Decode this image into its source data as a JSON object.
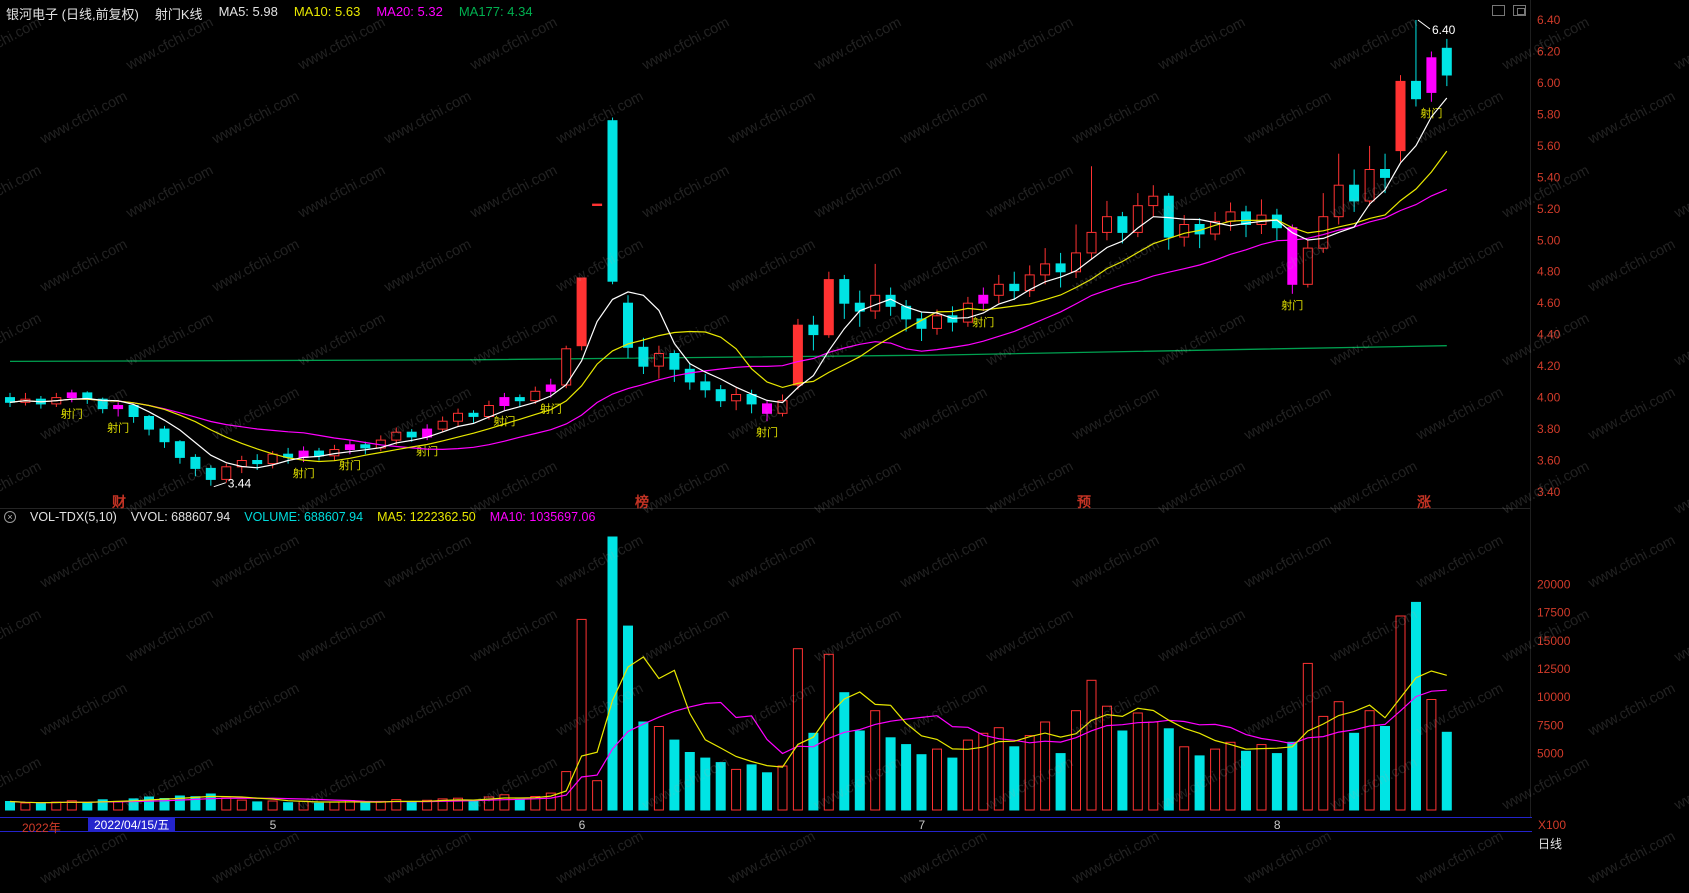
{
  "header": {
    "title": "银河电子 (日线,前复权)",
    "indicator": "射门K线",
    "ma5": "MA5: 5.98",
    "ma10": "MA10: 5.63",
    "ma20": "MA20: 5.32",
    "ma177": "MA177: 4.34"
  },
  "vol_header": {
    "name": "VOL-TDX(5,10)",
    "vvol": "VVOL: 688607.94",
    "volume": "VOLUME: 688607.94",
    "ma5": "MA5: 1222362.50",
    "ma10": "MA10: 1035697.06"
  },
  "hot_words": [
    "财",
    "榜",
    "预",
    "涨"
  ],
  "watermark": "www.cfchi.com",
  "timeline": {
    "year": "2022年",
    "selected_date": "2022/04/15/五",
    "months": [
      {
        "label": "5",
        "index": 17
      },
      {
        "label": "6",
        "index": 37
      },
      {
        "label": "7",
        "index": 59
      },
      {
        "label": "8",
        "index": 82
      }
    ]
  },
  "bottom_right": {
    "unit": "X100",
    "period": "日线"
  },
  "colors": {
    "up": "#ff3232",
    "down": "#00e4e4",
    "signal": "#ff00ff",
    "ma5_line": "#ffffff",
    "ma10_line": "#e8e800",
    "ma20_line": "#ff00ff",
    "ma177_line": "#00a050",
    "vol_ma5_line": "#e8e800",
    "vol_ma10_line": "#ff00ff",
    "axis_text": "#d23b2a",
    "month_text": "#c8c8c8",
    "signal_label": "#e0e000",
    "annotation": "#ffffff",
    "timeline_blue": "#2323cb",
    "highlight_bg": "#2424cc",
    "hot_word": "#c23324",
    "background": "#000000"
  },
  "chart_data": {
    "type": "candlestick+volume",
    "title": "银河电子 日线 前复权 射门K线",
    "price_axis": {
      "min": 3.4,
      "max": 6.4,
      "step": 0.2
    },
    "volume_axis": {
      "labels": [
        20000,
        17500,
        15000,
        12500,
        10000,
        7500,
        5000
      ],
      "max": 25000,
      "unit": "X100"
    },
    "signal_label": "射门",
    "low_marker": {
      "index": 13,
      "price": 3.44
    },
    "high_marker": {
      "index": 91,
      "price": 6.4
    },
    "ma177_points": [
      [
        0,
        4.23
      ],
      [
        30,
        4.24
      ],
      [
        60,
        4.27
      ],
      [
        93,
        4.33
      ]
    ],
    "candles_format": "[open,high,low,close,volume_x100,flag] flag:0=normal,1=shoot_signal_magenta,2=solid_up",
    "candles": [
      [
        4.0,
        4.03,
        3.94,
        3.97,
        750,
        0
      ],
      [
        3.97,
        4.03,
        3.95,
        3.99,
        620,
        0
      ],
      [
        3.99,
        4.01,
        3.93,
        3.96,
        580,
        0
      ],
      [
        3.96,
        4.03,
        3.94,
        4.0,
        700,
        0
      ],
      [
        4.0,
        4.05,
        3.97,
        4.03,
        820,
        1
      ],
      [
        4.03,
        4.04,
        3.96,
        3.99,
        640,
        0
      ],
      [
        3.99,
        4.0,
        3.9,
        3.93,
        900,
        0
      ],
      [
        3.93,
        3.97,
        3.88,
        3.95,
        760,
        1
      ],
      [
        3.95,
        3.96,
        3.84,
        3.88,
        980,
        0
      ],
      [
        3.88,
        3.89,
        3.76,
        3.8,
        1150,
        0
      ],
      [
        3.8,
        3.82,
        3.68,
        3.72,
        1020,
        0
      ],
      [
        3.72,
        3.73,
        3.58,
        3.62,
        1240,
        0
      ],
      [
        3.62,
        3.64,
        3.5,
        3.55,
        1180,
        0
      ],
      [
        3.55,
        3.57,
        3.44,
        3.48,
        1420,
        0
      ],
      [
        3.48,
        3.58,
        3.46,
        3.56,
        1060,
        0
      ],
      [
        3.56,
        3.63,
        3.52,
        3.6,
        880,
        0
      ],
      [
        3.6,
        3.64,
        3.54,
        3.58,
        720,
        0
      ],
      [
        3.58,
        3.66,
        3.55,
        3.64,
        800,
        0
      ],
      [
        3.64,
        3.68,
        3.58,
        3.62,
        650,
        0
      ],
      [
        3.62,
        3.69,
        3.59,
        3.66,
        780,
        1
      ],
      [
        3.66,
        3.68,
        3.6,
        3.63,
        600,
        0
      ],
      [
        3.63,
        3.7,
        3.6,
        3.67,
        700,
        0
      ],
      [
        3.67,
        3.73,
        3.64,
        3.7,
        840,
        1
      ],
      [
        3.7,
        3.72,
        3.64,
        3.68,
        620,
        0
      ],
      [
        3.68,
        3.76,
        3.66,
        3.73,
        760,
        0
      ],
      [
        3.73,
        3.81,
        3.7,
        3.78,
        920,
        0
      ],
      [
        3.78,
        3.8,
        3.72,
        3.75,
        680,
        0
      ],
      [
        3.75,
        3.83,
        3.73,
        3.8,
        860,
        1
      ],
      [
        3.8,
        3.88,
        3.78,
        3.85,
        980,
        0
      ],
      [
        3.85,
        3.93,
        3.82,
        3.9,
        1050,
        0
      ],
      [
        3.9,
        3.92,
        3.84,
        3.88,
        800,
        0
      ],
      [
        3.88,
        3.98,
        3.86,
        3.95,
        1150,
        0
      ],
      [
        3.95,
        4.03,
        3.92,
        4.0,
        1350,
        1
      ],
      [
        4.0,
        4.02,
        3.94,
        3.98,
        950,
        0
      ],
      [
        3.98,
        4.07,
        3.96,
        4.04,
        1200,
        0
      ],
      [
        4.04,
        4.12,
        4.0,
        4.08,
        1500,
        1
      ],
      [
        4.08,
        4.33,
        4.06,
        4.31,
        3400,
        0
      ],
      [
        4.33,
        4.76,
        4.3,
        4.76,
        16900,
        2
      ],
      [
        5.23,
        5.23,
        5.23,
        5.23,
        2600,
        2
      ],
      [
        5.76,
        5.78,
        4.72,
        4.74,
        24200,
        0
      ],
      [
        4.6,
        4.65,
        4.25,
        4.32,
        16300,
        0
      ],
      [
        4.32,
        4.38,
        4.15,
        4.2,
        7800,
        0
      ],
      [
        4.2,
        4.33,
        4.12,
        4.28,
        7400,
        0
      ],
      [
        4.28,
        4.3,
        4.1,
        4.18,
        6200,
        0
      ],
      [
        4.18,
        4.22,
        4.05,
        4.1,
        5100,
        0
      ],
      [
        4.1,
        4.15,
        4.0,
        4.05,
        4600,
        0
      ],
      [
        4.05,
        4.08,
        3.94,
        3.98,
        4200,
        0
      ],
      [
        3.98,
        4.06,
        3.92,
        4.02,
        3600,
        0
      ],
      [
        4.02,
        4.05,
        3.9,
        3.96,
        4000,
        0
      ],
      [
        3.96,
        3.98,
        3.85,
        3.9,
        3300,
        1
      ],
      [
        3.9,
        4.02,
        3.88,
        3.98,
        3900,
        0
      ],
      [
        4.08,
        4.5,
        4.05,
        4.46,
        14300,
        2
      ],
      [
        4.46,
        4.52,
        4.3,
        4.4,
        6800,
        0
      ],
      [
        4.4,
        4.8,
        4.38,
        4.75,
        13800,
        2
      ],
      [
        4.75,
        4.78,
        4.5,
        4.6,
        10400,
        0
      ],
      [
        4.6,
        4.68,
        4.45,
        4.55,
        7000,
        0
      ],
      [
        4.55,
        4.85,
        4.5,
        4.65,
        8800,
        0
      ],
      [
        4.65,
        4.7,
        4.52,
        4.58,
        6400,
        0
      ],
      [
        4.58,
        4.62,
        4.42,
        4.5,
        5800,
        0
      ],
      [
        4.5,
        4.54,
        4.36,
        4.44,
        4900,
        0
      ],
      [
        4.44,
        4.56,
        4.4,
        4.52,
        5400,
        0
      ],
      [
        4.52,
        4.58,
        4.42,
        4.48,
        4600,
        0
      ],
      [
        4.48,
        4.64,
        4.45,
        4.6,
        6200,
        0
      ],
      [
        4.6,
        4.7,
        4.55,
        4.65,
        6800,
        1
      ],
      [
        4.65,
        4.78,
        4.6,
        4.72,
        7300,
        0
      ],
      [
        4.72,
        4.8,
        4.62,
        4.68,
        5600,
        0
      ],
      [
        4.68,
        4.84,
        4.64,
        4.78,
        6600,
        0
      ],
      [
        4.78,
        4.95,
        4.72,
        4.85,
        7800,
        0
      ],
      [
        4.85,
        4.92,
        4.7,
        4.8,
        5000,
        0
      ],
      [
        4.8,
        5.1,
        4.76,
        4.92,
        8800,
        0
      ],
      [
        4.92,
        5.47,
        4.88,
        5.05,
        11500,
        0
      ],
      [
        5.05,
        5.25,
        5.0,
        5.15,
        9200,
        0
      ],
      [
        5.15,
        5.18,
        4.98,
        5.05,
        7000,
        0
      ],
      [
        5.05,
        5.3,
        5.02,
        5.22,
        8600,
        0
      ],
      [
        5.22,
        5.35,
        5.15,
        5.28,
        7800,
        0
      ],
      [
        5.28,
        5.3,
        4.94,
        5.02,
        7200,
        0
      ],
      [
        5.02,
        5.16,
        4.96,
        5.1,
        5600,
        0
      ],
      [
        5.1,
        5.14,
        4.95,
        5.04,
        4800,
        0
      ],
      [
        5.04,
        5.18,
        5.0,
        5.12,
        5400,
        0
      ],
      [
        5.12,
        5.24,
        5.06,
        5.18,
        6000,
        0
      ],
      [
        5.18,
        5.22,
        5.02,
        5.1,
        5200,
        0
      ],
      [
        5.1,
        5.26,
        5.04,
        5.16,
        5800,
        0
      ],
      [
        5.16,
        5.2,
        5.0,
        5.08,
        5000,
        0
      ],
      [
        5.08,
        5.1,
        4.66,
        4.72,
        6000,
        1
      ],
      [
        4.72,
        5.0,
        4.7,
        4.95,
        13000,
        0
      ],
      [
        4.95,
        5.3,
        4.92,
        5.15,
        8300,
        0
      ],
      [
        5.15,
        5.55,
        5.1,
        5.35,
        9600,
        0
      ],
      [
        5.35,
        5.45,
        5.18,
        5.25,
        6800,
        0
      ],
      [
        5.25,
        5.6,
        5.22,
        5.45,
        8800,
        0
      ],
      [
        5.45,
        5.55,
        5.3,
        5.4,
        7400,
        0
      ],
      [
        5.57,
        6.05,
        5.5,
        6.01,
        17200,
        2
      ],
      [
        6.01,
        6.4,
        5.85,
        5.9,
        18400,
        0
      ],
      [
        5.94,
        6.2,
        5.88,
        6.16,
        9800,
        1
      ],
      [
        6.22,
        6.28,
        5.98,
        6.05,
        6886,
        0
      ]
    ]
  }
}
